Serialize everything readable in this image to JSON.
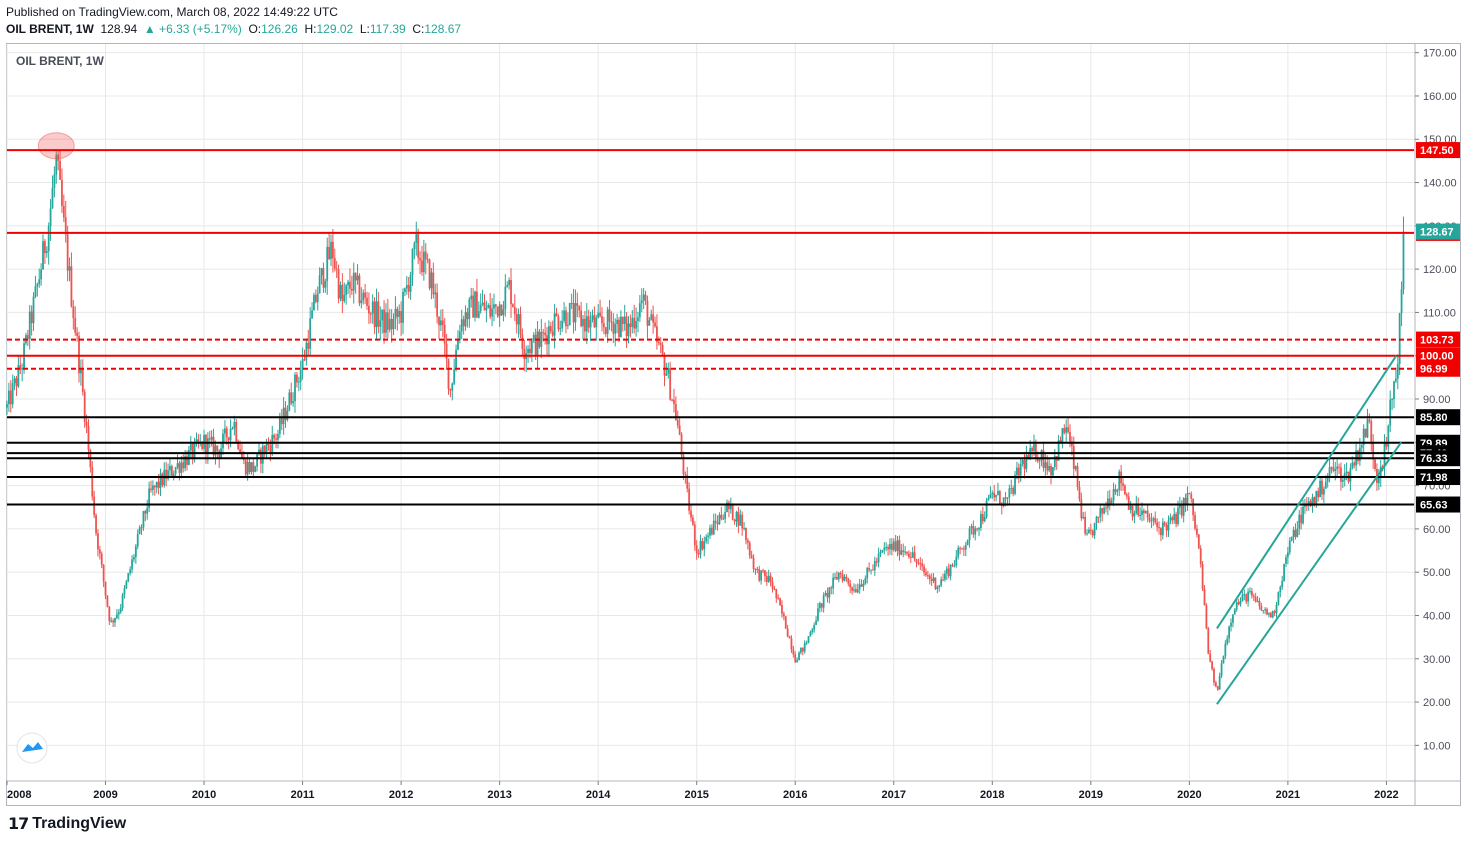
{
  "published": "Published on TradingView.com, March 08, 2022 14:49:22 UTC",
  "header": {
    "symbol": "OIL BRENT, 1W",
    "last": "128.94",
    "change": "▲ +6.33 (+5.17%)",
    "open_label": "O:",
    "open": "126.26",
    "high_label": "H:",
    "high": "129.02",
    "low_label": "L:",
    "low": "117.39",
    "close_label": "C:",
    "close": "128.67"
  },
  "pane_title": "OIL BRENT, 1W",
  "footer": {
    "brand": "TradingView"
  },
  "colors": {
    "up": "#26a69a",
    "down": "#ef5350",
    "level_red": "#f20000",
    "level_black": "#000000",
    "channel": "#26a69a",
    "grid": "#e8e8e8"
  },
  "chart_data": {
    "type": "candlestick",
    "title": "OIL BRENT, 1W",
    "x_range": [
      2008.0,
      2022.28
    ],
    "ylim": [
      2,
      172
    ],
    "y_ticks": [
      10,
      20,
      30,
      40,
      50,
      60,
      70,
      80,
      90,
      100,
      110,
      120,
      130,
      140,
      150,
      160,
      170
    ],
    "y_tick_labels": [
      "10.00",
      "20.00",
      "30.00",
      "40.00",
      "50.00",
      "60.00",
      "70.00",
      "80.00",
      "90.00",
      "100.00",
      "110.00",
      "120.00",
      "130.00",
      "140.00",
      "150.00",
      "160.00",
      "170.00"
    ],
    "x_ticks": [
      2008,
      2009,
      2010,
      2011,
      2012,
      2013,
      2014,
      2015,
      2016,
      2017,
      2018,
      2019,
      2020,
      2021,
      2022
    ],
    "x_tick_labels": [
      "2008",
      "2009",
      "2010",
      "2011",
      "2012",
      "2013",
      "2014",
      "2015",
      "2016",
      "2017",
      "2018",
      "2019",
      "2020",
      "2021",
      "2022"
    ],
    "price_path": [
      [
        2008.0,
        88
      ],
      [
        2008.15,
        98
      ],
      [
        2008.3,
        115
      ],
      [
        2008.42,
        130
      ],
      [
        2008.5,
        145
      ],
      [
        2008.6,
        125
      ],
      [
        2008.7,
        105
      ],
      [
        2008.8,
        85
      ],
      [
        2008.9,
        60
      ],
      [
        2009.0,
        45
      ],
      [
        2009.05,
        38
      ],
      [
        2009.15,
        42
      ],
      [
        2009.3,
        55
      ],
      [
        2009.45,
        68
      ],
      [
        2009.6,
        72
      ],
      [
        2009.75,
        75
      ],
      [
        2009.9,
        78
      ],
      [
        2010.0,
        80
      ],
      [
        2010.15,
        78
      ],
      [
        2010.3,
        85
      ],
      [
        2010.4,
        75
      ],
      [
        2010.5,
        74
      ],
      [
        2010.6,
        78
      ],
      [
        2010.75,
        82
      ],
      [
        2010.9,
        92
      ],
      [
        2011.0,
        98
      ],
      [
        2011.15,
        115
      ],
      [
        2011.3,
        125
      ],
      [
        2011.4,
        112
      ],
      [
        2011.5,
        117
      ],
      [
        2011.65,
        112
      ],
      [
        2011.8,
        108
      ],
      [
        2011.9,
        107
      ],
      [
        2012.0,
        110
      ],
      [
        2012.15,
        125
      ],
      [
        2012.3,
        118
      ],
      [
        2012.42,
        105
      ],
      [
        2012.5,
        92
      ],
      [
        2012.6,
        108
      ],
      [
        2012.75,
        112
      ],
      [
        2012.9,
        110
      ],
      [
        2013.0,
        112
      ],
      [
        2013.1,
        116
      ],
      [
        2013.25,
        102
      ],
      [
        2013.4,
        103
      ],
      [
        2013.55,
        108
      ],
      [
        2013.7,
        110
      ],
      [
        2013.85,
        108
      ],
      [
        2014.0,
        107
      ],
      [
        2014.15,
        108
      ],
      [
        2014.3,
        106
      ],
      [
        2014.45,
        113
      ],
      [
        2014.55,
        106
      ],
      [
        2014.7,
        96
      ],
      [
        2014.8,
        85
      ],
      [
        2014.9,
        68
      ],
      [
        2015.0,
        55
      ],
      [
        2015.1,
        58
      ],
      [
        2015.3,
        65
      ],
      [
        2015.45,
        62
      ],
      [
        2015.6,
        50
      ],
      [
        2015.75,
        48
      ],
      [
        2015.9,
        38
      ],
      [
        2016.0,
        30
      ],
      [
        2016.1,
        33
      ],
      [
        2016.25,
        42
      ],
      [
        2016.45,
        50
      ],
      [
        2016.6,
        46
      ],
      [
        2016.75,
        50
      ],
      [
        2016.9,
        55
      ],
      [
        2017.0,
        56
      ],
      [
        2017.15,
        55
      ],
      [
        2017.3,
        50
      ],
      [
        2017.45,
        47
      ],
      [
        2017.6,
        52
      ],
      [
        2017.75,
        58
      ],
      [
        2017.9,
        63
      ],
      [
        2018.0,
        68
      ],
      [
        2018.15,
        66
      ],
      [
        2018.3,
        75
      ],
      [
        2018.45,
        78
      ],
      [
        2018.6,
        74
      ],
      [
        2018.75,
        84
      ],
      [
        2018.85,
        72
      ],
      [
        2018.95,
        57
      ],
      [
        2019.05,
        61
      ],
      [
        2019.2,
        68
      ],
      [
        2019.3,
        72
      ],
      [
        2019.4,
        65
      ],
      [
        2019.55,
        63
      ],
      [
        2019.7,
        60
      ],
      [
        2019.85,
        62
      ],
      [
        2020.0,
        68
      ],
      [
        2020.1,
        55
      ],
      [
        2020.2,
        30
      ],
      [
        2020.28,
        22
      ],
      [
        2020.35,
        32
      ],
      [
        2020.45,
        42
      ],
      [
        2020.6,
        45
      ],
      [
        2020.75,
        41
      ],
      [
        2020.85,
        40
      ],
      [
        2020.95,
        50
      ],
      [
        2021.0,
        55
      ],
      [
        2021.15,
        64
      ],
      [
        2021.3,
        68
      ],
      [
        2021.45,
        74
      ],
      [
        2021.6,
        72
      ],
      [
        2021.75,
        80
      ],
      [
        2021.82,
        85
      ],
      [
        2021.9,
        72
      ],
      [
        2022.0,
        79
      ],
      [
        2022.05,
        90
      ],
      [
        2022.1,
        96
      ],
      [
        2022.15,
        112
      ],
      [
        2022.19,
        128.67
      ]
    ],
    "levels": [
      {
        "price": 147.5,
        "label": "147.50",
        "color": "#f20000",
        "style": "solid"
      },
      {
        "price": 128.37,
        "label": "128.37",
        "color": "#f20000",
        "style": "solid"
      },
      {
        "price": 103.73,
        "label": "103.73",
        "color": "#f20000",
        "style": "dashed"
      },
      {
        "price": 100.0,
        "label": "100.00",
        "color": "#f20000",
        "style": "solid"
      },
      {
        "price": 96.99,
        "label": "96.99",
        "color": "#f20000",
        "style": "dashed"
      },
      {
        "price": 85.8,
        "label": "85.80",
        "color": "#000000",
        "style": "solid"
      },
      {
        "price": 79.89,
        "label": "79.89",
        "color": "#000000",
        "style": "solid"
      },
      {
        "price": 77.49,
        "label": "77.49",
        "color": "#000000",
        "style": "solid"
      },
      {
        "price": 76.33,
        "label": "76.33",
        "color": "#000000",
        "style": "solid"
      },
      {
        "price": 71.98,
        "label": "71.98",
        "color": "#000000",
        "style": "solid"
      },
      {
        "price": 65.63,
        "label": "65.63",
        "color": "#000000",
        "style": "solid"
      }
    ],
    "last_price": {
      "price": 128.67,
      "label": "128.67",
      "color": "#26a69a"
    },
    "channel": [
      {
        "x1": 2020.28,
        "y1": 19.5,
        "x2": 2022.15,
        "y2": 80
      },
      {
        "x1": 2020.28,
        "y1": 37,
        "x2": 2022.1,
        "y2": 100
      }
    ],
    "highlight": {
      "x": 2008.5,
      "y": 148.5
    }
  }
}
